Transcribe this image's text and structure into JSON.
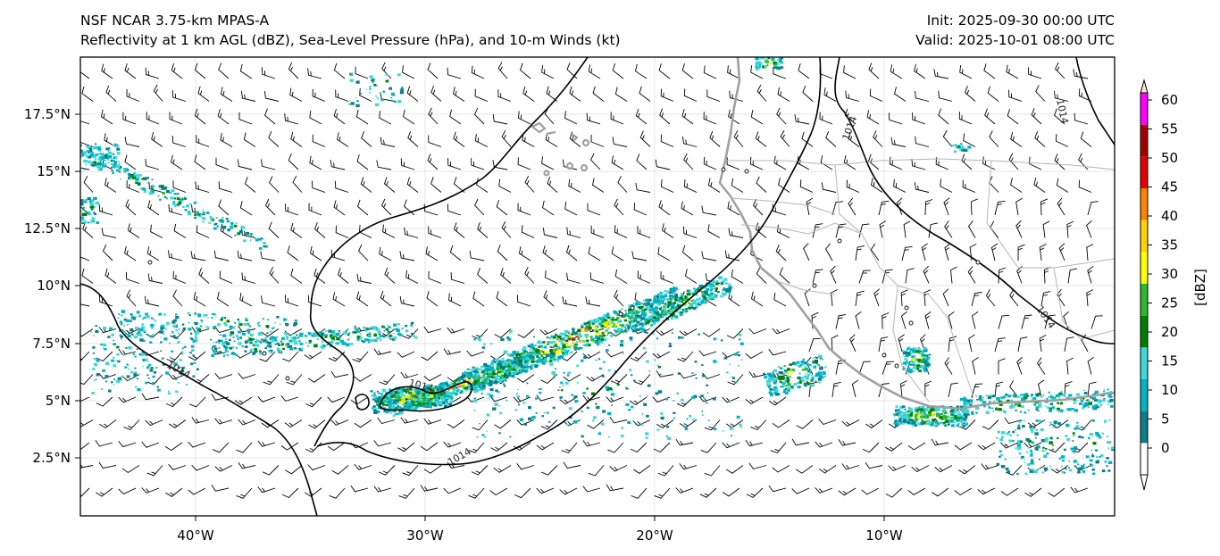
{
  "header": {
    "model": "NSF NCAR 3.75-km MPAS-A",
    "fields": "Reflectivity at 1 km AGL (dBZ), Sea-Level Pressure (hPa), and 10-m Winds (kt)",
    "init": "Init: 2025-09-30 00:00 UTC",
    "valid": "Valid: 2025-10-01 08:00 UTC"
  },
  "map": {
    "lat_ticks": [
      "17.5°N",
      "15°N",
      "12.5°N",
      "10°N",
      "7.5°N",
      "5°N",
      "2.5°N"
    ],
    "lon_ticks": [
      "40°W",
      "30°W",
      "20°W",
      "10°W"
    ],
    "isobar_labels": [
      "1014",
      "1014",
      "1014",
      "1014",
      "1014",
      "1014"
    ],
    "coast_color": "#a0a0a0",
    "isobar_color": "#000000"
  },
  "colorbar": {
    "unit_label": "[dBZ]",
    "ticks": [
      "0",
      "5",
      "10",
      "15",
      "20",
      "25",
      "30",
      "35",
      "40",
      "45",
      "50",
      "55",
      "60"
    ],
    "colors": [
      "#ffffff",
      "#0a7f8a",
      "#00b4c8",
      "#3ed8d8",
      "#008000",
      "#2db82d",
      "#ffff00",
      "#ffd200",
      "#ff8200",
      "#e60000",
      "#a50000",
      "#ff00ff",
      "#ffe0d0"
    ]
  }
}
